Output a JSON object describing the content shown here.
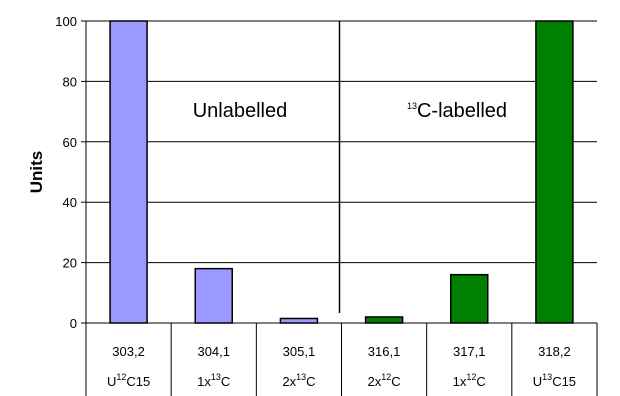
{
  "chart_data": {
    "type": "bar",
    "title": "",
    "ylabel": "Units",
    "ylim": [
      0,
      100
    ],
    "yticks": [
      "0",
      "20",
      "40",
      "60",
      "80",
      "100"
    ],
    "grid": true,
    "categories": [
      "303,2",
      "304,1",
      "305,1",
      "316,1",
      "317,1",
      "318,2"
    ],
    "category_labels_line2": [
      {
        "pre": "U",
        "sup": "12",
        "post": "C15"
      },
      {
        "pre": "1x",
        "sup": "13",
        "post": "C"
      },
      {
        "pre": "2x",
        "sup": "13",
        "post": "C"
      },
      {
        "pre": "2x",
        "sup": "12",
        "post": "C"
      },
      {
        "pre": "1x",
        "sup": "12",
        "post": "C"
      },
      {
        "pre": "U",
        "sup": "13",
        "post": "C15"
      }
    ],
    "values": [
      100,
      18,
      1.5,
      2,
      16,
      100
    ],
    "bar_colors": [
      "#9999ff",
      "#9999ff",
      "#9999ff",
      "#008000",
      "#008000",
      "#008000"
    ],
    "annotations": [
      {
        "text": "Unlabelled",
        "sup": "",
        "after": ""
      },
      {
        "text": "",
        "sup": "13",
        "after": "C-labelled"
      }
    ],
    "divider_between": [
      3,
      4
    ]
  }
}
